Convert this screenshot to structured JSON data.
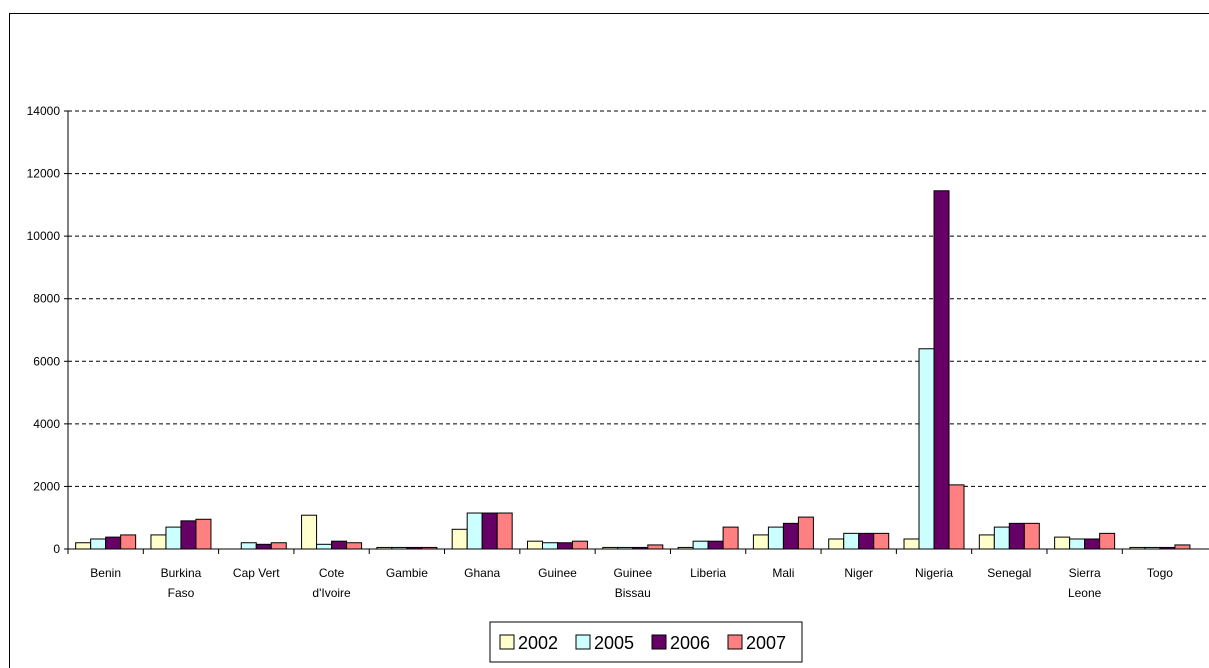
{
  "chart_data": {
    "type": "bar",
    "categories": [
      [
        "Benin"
      ],
      [
        "Burkina",
        "Faso"
      ],
      [
        "Cap Vert"
      ],
      [
        "Cote",
        "d'Ivoire"
      ],
      [
        "Gambie"
      ],
      [
        "Ghana"
      ],
      [
        "Guinee"
      ],
      [
        "Guinee",
        "Bissau"
      ],
      [
        "Liberia"
      ],
      [
        "Mali"
      ],
      [
        "Niger"
      ],
      [
        "Nigeria"
      ],
      [
        "Senegal"
      ],
      [
        "Sierra",
        "Leone"
      ],
      [
        "Togo"
      ]
    ],
    "series": [
      {
        "name": "2002",
        "color": "#ffffcc",
        "values": [
          200,
          450,
          0,
          1080,
          50,
          630,
          250,
          50,
          50,
          450,
          320,
          320,
          450,
          380,
          50
        ]
      },
      {
        "name": "2005",
        "color": "#ccffff",
        "values": [
          320,
          700,
          200,
          150,
          50,
          1150,
          200,
          50,
          250,
          700,
          500,
          6400,
          700,
          320,
          50
        ]
      },
      {
        "name": "2006",
        "color": "#660066",
        "values": [
          380,
          900,
          150,
          250,
          50,
          1150,
          200,
          50,
          250,
          820,
          500,
          11450,
          820,
          320,
          50
        ]
      },
      {
        "name": "2007",
        "color": "#ff8080",
        "values": [
          450,
          950,
          200,
          200,
          50,
          1150,
          250,
          130,
          700,
          1020,
          500,
          2050,
          820,
          500,
          130
        ]
      }
    ],
    "yticks": [
      "0",
      "2000",
      "4000",
      "6000",
      "8000",
      "10000",
      "12000",
      "14000"
    ],
    "ylim": [
      0,
      14000
    ],
    "grid": "horizontal dashed",
    "legend_position": "bottom"
  }
}
